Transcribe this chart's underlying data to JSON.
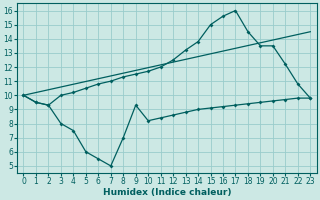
{
  "xlabel": "Humidex (Indice chaleur)",
  "bg_color": "#cce8e4",
  "grid_color": "#99cccc",
  "line_color": "#005f5f",
  "xlim": [
    -0.5,
    23.5
  ],
  "ylim": [
    4.5,
    16.5
  ],
  "xticks": [
    0,
    1,
    2,
    3,
    4,
    5,
    6,
    7,
    8,
    9,
    10,
    11,
    12,
    13,
    14,
    15,
    16,
    17,
    18,
    19,
    20,
    21,
    22,
    23
  ],
  "yticks": [
    5,
    6,
    7,
    8,
    9,
    10,
    11,
    12,
    13,
    14,
    15,
    16
  ],
  "line1_x": [
    0,
    1,
    2,
    3,
    4,
    5,
    6,
    7,
    8,
    9,
    10,
    11,
    12,
    13,
    14,
    15,
    16,
    17,
    18,
    19,
    20,
    21,
    22,
    23
  ],
  "line1_y": [
    10.0,
    9.5,
    9.3,
    10.0,
    10.2,
    10.5,
    10.8,
    11.0,
    11.3,
    11.5,
    11.7,
    12.0,
    12.5,
    13.2,
    13.8,
    15.0,
    15.6,
    16.0,
    14.5,
    13.5,
    13.5,
    12.2,
    10.8,
    9.8
  ],
  "line2_x": [
    0,
    1,
    2,
    3,
    4,
    5,
    6,
    7,
    8,
    9,
    10,
    11,
    12,
    13,
    14,
    15,
    16,
    17,
    18,
    19,
    20,
    21,
    22,
    23
  ],
  "line2_y": [
    10.0,
    9.5,
    9.3,
    8.0,
    7.5,
    6.0,
    5.5,
    5.0,
    7.0,
    9.3,
    8.2,
    8.4,
    8.6,
    8.8,
    9.0,
    9.1,
    9.2,
    9.3,
    9.4,
    9.5,
    9.6,
    9.7,
    9.8,
    9.8
  ],
  "line3_x": [
    0,
    23
  ],
  "line3_y": [
    10.0,
    14.5
  ],
  "tick_fontsize": 5.5,
  "xlabel_fontsize": 6.5
}
